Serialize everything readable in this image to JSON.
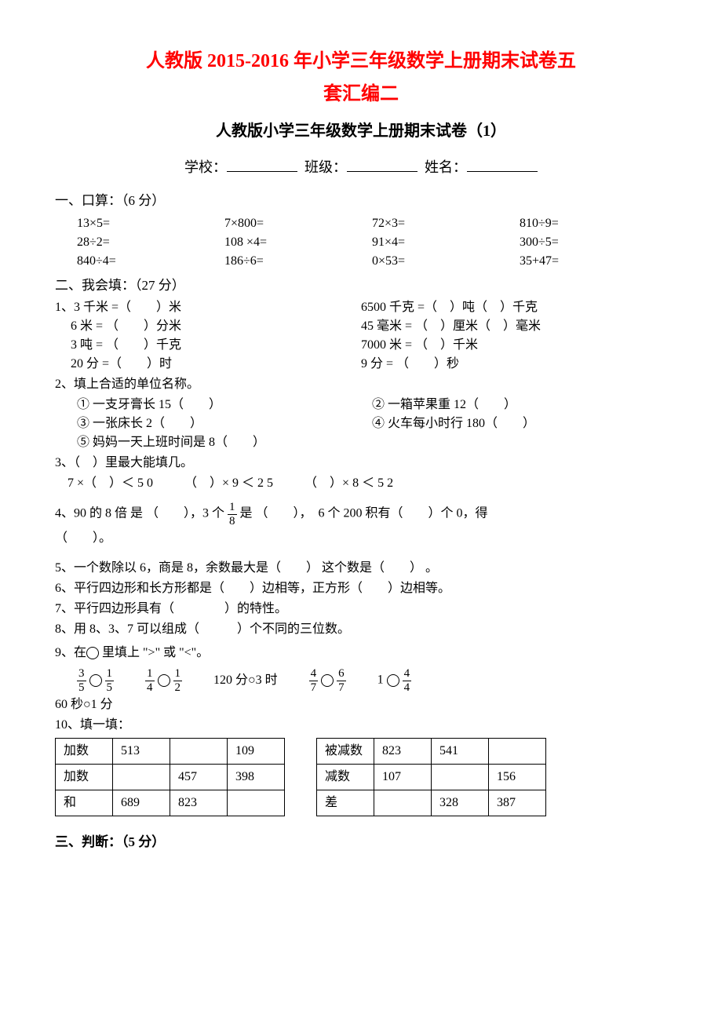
{
  "titles": {
    "main_line1": "人教版 2015-2016 年小学三年级数学上册期末试卷五",
    "main_line2": "套汇编二",
    "exam": "人教版小学三年级数学上册期末试卷（1）"
  },
  "info": {
    "school_label": "学校：",
    "class_label": "班级：",
    "name_label": "姓名："
  },
  "section1": {
    "head": "一、口算：（6 分）",
    "rows": [
      [
        "13×5=",
        "7×800=",
        "72×3=",
        "810÷9="
      ],
      [
        "28÷2=",
        "108 ×4=",
        "91×4=",
        "300÷5="
      ],
      [
        "840÷4=",
        "186÷6=",
        "0×53=",
        "35+47="
      ]
    ]
  },
  "section2": {
    "head": "二、我会填：（27 分）",
    "q1": {
      "left": [
        "1、3 千米 =（　　）米",
        "　 6 米 = （　　）分米",
        "　 3 吨 = （　　）千克",
        "　 20 分 =（　　）时"
      ],
      "right": [
        "6500 千克 =（　）吨（　）千克",
        "45 毫米 = （　）厘米（　）毫米",
        "7000 米 = （　）千米",
        "9 分 = （　　）秒"
      ]
    },
    "q2": {
      "head": "2、填上合适的单位名称。",
      "items_left": [
        "① 一支牙膏长 15（　　）",
        "③ 一张床长 2（　　）",
        "⑤ 妈妈一天上班时间是 8（　　）"
      ],
      "items_right": [
        "② 一箱苹果重 12（　　）",
        "④ 火车每小时行 180（　　）",
        ""
      ]
    },
    "q3": {
      "head": "3、（　）里最大能填几。",
      "line": "　7 ×（　）＜ 5 0　　　（　）× 9 ＜ 2 5　　　（　）× 8 ＜ 5 2"
    },
    "q4": {
      "pre": "4、90 的 8 倍 是 （　　），3 个 ",
      "post": " 是 （　　），　6 个 200 积有（　　）个 0，得",
      "line2": "（　　）。",
      "frac_n": "1",
      "frac_d": "8"
    },
    "q5": "5、一个数除以 6，商是 8，余数最大是（　　） 这个数是（　　） 。",
    "q6": "6、平行四边形和长方形都是（　　）边相等，正方形（　　）边相等。",
    "q7": "7、平行四边形具有（　　　　）的特性。",
    "q8": "8、用 8、3、7 可以组成（　　　）个不同的三位数。",
    "q9": {
      "head_pre": "9、在",
      "head_post": " 里填上 \">\" 或 \"<\"。",
      "items": [
        {
          "type": "ff",
          "a_n": "3",
          "a_d": "5",
          "b_n": "1",
          "b_d": "5"
        },
        {
          "type": "ff",
          "a_n": "1",
          "a_d": "4",
          "b_n": "1",
          "b_d": "2"
        },
        {
          "type": "txt",
          "text": "120 分○3 时"
        },
        {
          "type": "ff",
          "a_n": "4",
          "a_d": "7",
          "b_n": "6",
          "b_d": "7"
        },
        {
          "type": "nf",
          "a": "1",
          "b_n": "4",
          "b_d": "4"
        }
      ],
      "line2": "60 秒○1 分"
    },
    "q10": {
      "head": "10、填一填：",
      "table1": {
        "rows": [
          [
            "加数",
            "513",
            "",
            "109"
          ],
          [
            "加数",
            "",
            "457",
            "398"
          ],
          [
            "和",
            "689",
            "823",
            ""
          ]
        ]
      },
      "table2": {
        "rows": [
          [
            "被减数",
            "823",
            "541",
            ""
          ],
          [
            "减数",
            "107",
            "",
            "156"
          ],
          [
            "差",
            "",
            "328",
            "387"
          ]
        ]
      }
    }
  },
  "section3": {
    "head_pre": "三、判断：",
    "head_points": "（5 分）"
  }
}
